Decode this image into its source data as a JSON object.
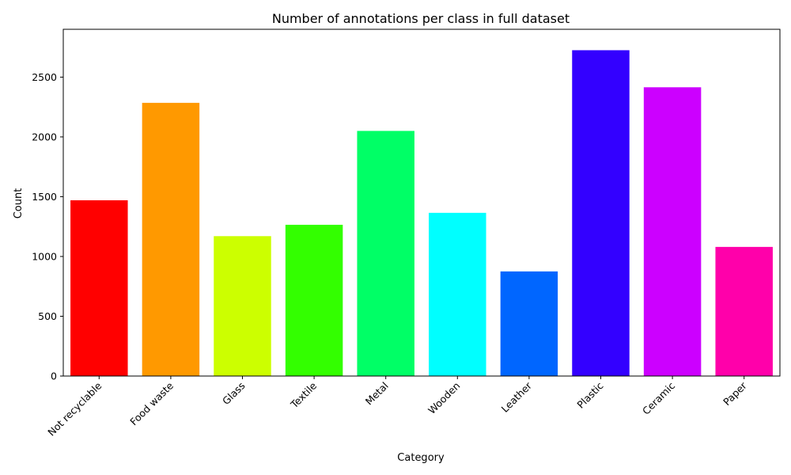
{
  "chart_data": {
    "type": "bar",
    "title": "Number of annotations per class in full dataset",
    "xlabel": "Category",
    "ylabel": "Count",
    "categories": [
      "Not recyclable",
      "Food waste",
      "Glass",
      "Textile",
      "Metal",
      "Wooden",
      "Leather",
      "Plastic",
      "Ceramic",
      "Paper"
    ],
    "values": [
      1470,
      2285,
      1170,
      1265,
      2050,
      1365,
      875,
      2725,
      2415,
      1080
    ],
    "colors": [
      "#ff0000",
      "#ff9900",
      "#ccff00",
      "#33ff00",
      "#00ff66",
      "#00ffff",
      "#0066ff",
      "#3300ff",
      "#cc00ff",
      "#ff00aa"
    ],
    "ylim": [
      0,
      2900
    ],
    "yticks": [
      0,
      500,
      1000,
      1500,
      2000,
      2500
    ],
    "grid": false,
    "legend": "none"
  }
}
